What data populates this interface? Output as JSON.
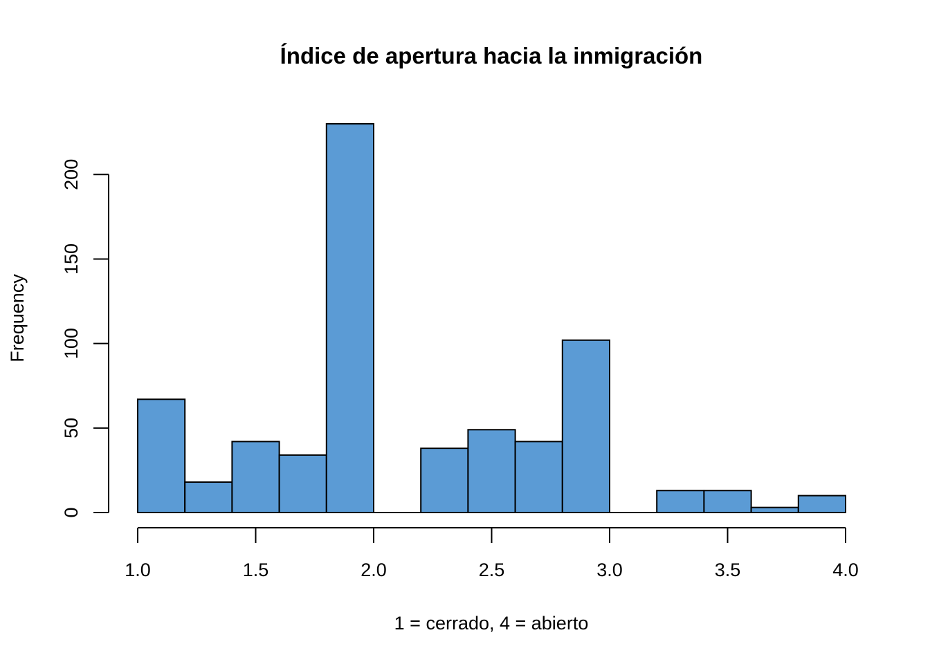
{
  "chart_data": {
    "type": "bar",
    "title": "Índice de apertura hacia la inmigración",
    "xlabel": "1 = cerrado, 4 = abierto",
    "ylabel": "Frequency",
    "bin_edges": [
      1.0,
      1.2,
      1.4,
      1.6,
      1.8,
      2.0,
      2.2,
      2.4,
      2.6,
      2.8,
      3.0,
      3.2,
      3.4,
      3.6,
      3.8,
      4.0
    ],
    "values": [
      67,
      18,
      42,
      34,
      230,
      0,
      38,
      49,
      42,
      102,
      0,
      13,
      13,
      3,
      10
    ],
    "xlim": [
      1.0,
      4.0
    ],
    "ylim": [
      0,
      230
    ],
    "x_ticks": [
      1.0,
      1.5,
      2.0,
      2.5,
      3.0,
      3.5,
      4.0
    ],
    "x_tick_labels": [
      "1.0",
      "1.5",
      "2.0",
      "2.5",
      "3.0",
      "3.5",
      "4.0"
    ],
    "y_ticks": [
      0,
      50,
      100,
      150,
      200
    ],
    "y_tick_labels": [
      "0",
      "50",
      "100",
      "150",
      "200"
    ],
    "bar_color": "#5b9bd5",
    "grid": false,
    "legend": "none"
  }
}
